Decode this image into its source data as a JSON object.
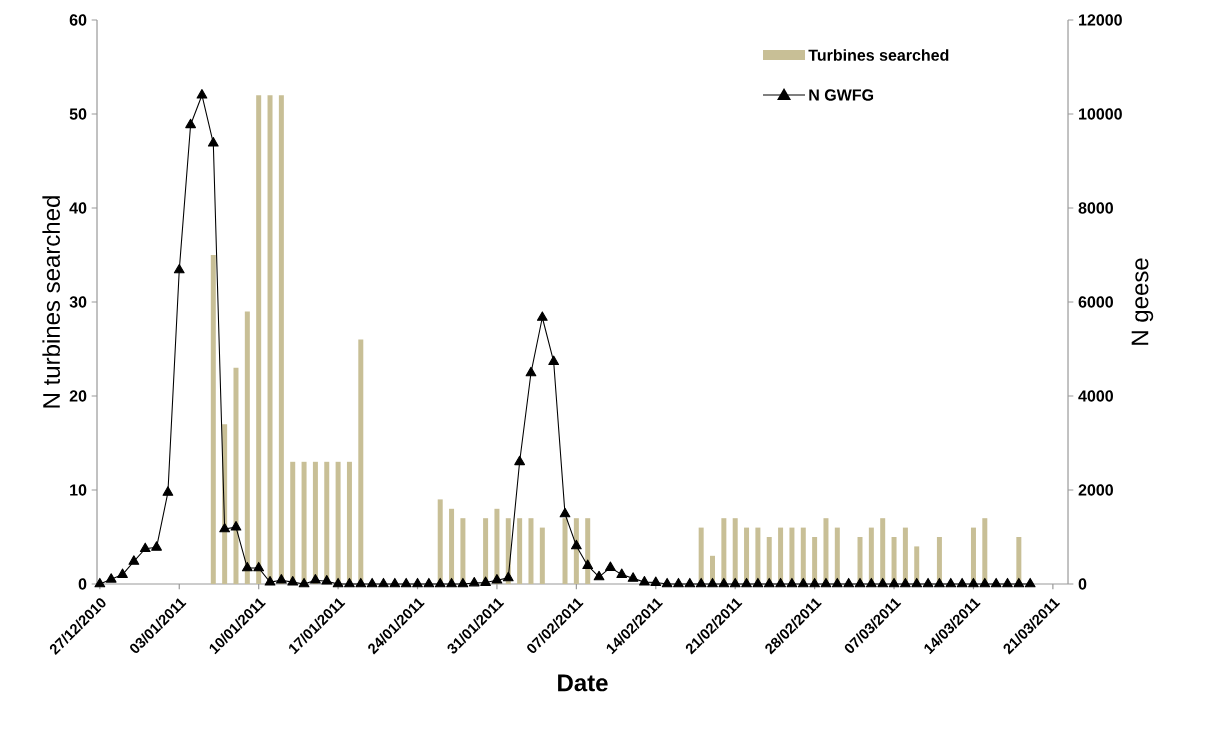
{
  "chart_data": {
    "type": "bar",
    "xlabel": "Date",
    "ylabel": "N turbines searched",
    "y2label": "N geese",
    "legend": "top right",
    "x": [
      "2010-12-27",
      "2010-12-28",
      "2010-12-29",
      "2010-12-30",
      "2010-12-31",
      "2011-01-01",
      "2011-01-02",
      "2011-01-03",
      "2011-01-04",
      "2011-01-05",
      "2011-01-06",
      "2011-01-07",
      "2011-01-08",
      "2011-01-09",
      "2011-01-10",
      "2011-01-11",
      "2011-01-12",
      "2011-01-13",
      "2011-01-14",
      "2011-01-15",
      "2011-01-16",
      "2011-01-17",
      "2011-01-18",
      "2011-01-19",
      "2011-01-20",
      "2011-01-21",
      "2011-01-22",
      "2011-01-23",
      "2011-01-24",
      "2011-01-25",
      "2011-01-26",
      "2011-01-27",
      "2011-01-28",
      "2011-01-29",
      "2011-01-30",
      "2011-01-31",
      "2011-02-01",
      "2011-02-02",
      "2011-02-03",
      "2011-02-04",
      "2011-02-05",
      "2011-02-06",
      "2011-02-07",
      "2011-02-08",
      "2011-02-09",
      "2011-02-10",
      "2011-02-11",
      "2011-02-12",
      "2011-02-13",
      "2011-02-14",
      "2011-02-15",
      "2011-02-16",
      "2011-02-17",
      "2011-02-18",
      "2011-02-19",
      "2011-02-20",
      "2011-02-21",
      "2011-02-22",
      "2011-02-23",
      "2011-02-24",
      "2011-02-25",
      "2011-02-26",
      "2011-02-27",
      "2011-02-28",
      "2011-03-01",
      "2011-03-02",
      "2011-03-03",
      "2011-03-04",
      "2011-03-05",
      "2011-03-06",
      "2011-03-07",
      "2011-03-08",
      "2011-03-09",
      "2011-03-10",
      "2011-03-11",
      "2011-03-12",
      "2011-03-13",
      "2011-03-14",
      "2011-03-15",
      "2011-03-16",
      "2011-03-17",
      "2011-03-18",
      "2011-03-19"
    ],
    "xlim": [
      "2010-12-26T18:00",
      "2011-03-22T08:00"
    ],
    "xticks": [
      {
        "value": "2010-12-27",
        "label": "27/12/2010"
      },
      {
        "value": "2011-01-03",
        "label": "03/01/2011"
      },
      {
        "value": "2011-01-10",
        "label": "10/01/2011"
      },
      {
        "value": "2011-01-17",
        "label": "17/01/2011"
      },
      {
        "value": "2011-01-24",
        "label": "24/01/2011"
      },
      {
        "value": "2011-01-31",
        "label": "31/01/2011"
      },
      {
        "value": "2011-02-07",
        "label": "07/02/2011"
      },
      {
        "value": "2011-02-14",
        "label": "14/02/2011"
      },
      {
        "value": "2011-02-21",
        "label": "21/02/2011"
      },
      {
        "value": "2011-02-28",
        "label": "28/02/2011"
      },
      {
        "value": "2011-03-07",
        "label": "07/03/2011"
      },
      {
        "value": "2011-03-14",
        "label": "14/03/2011"
      },
      {
        "value": "2011-03-21",
        "label": "21/03/2011"
      }
    ],
    "ylim": [
      0,
      60
    ],
    "yticks": [
      0,
      10,
      20,
      30,
      40,
      50,
      60
    ],
    "y2lim": [
      0,
      12000
    ],
    "y2ticks": [
      0,
      2000,
      4000,
      6000,
      8000,
      10000,
      12000
    ],
    "series": [
      {
        "name": "Turbines searched",
        "color": "#c8bf96",
        "values": [
          null,
          null,
          null,
          null,
          null,
          null,
          null,
          null,
          null,
          null,
          35,
          17,
          23,
          29,
          52,
          52,
          52,
          13,
          13,
          13,
          13,
          13,
          13,
          26,
          null,
          null,
          null,
          null,
          null,
          null,
          9,
          8,
          7,
          null,
          7,
          8,
          7,
          7,
          7,
          6,
          null,
          7,
          7,
          7,
          null,
          null,
          null,
          null,
          null,
          null,
          null,
          null,
          null,
          6,
          3,
          7,
          7,
          6,
          6,
          5,
          6,
          6,
          6,
          5,
          7,
          6,
          null,
          5,
          6,
          7,
          5,
          6,
          4,
          null,
          5,
          null,
          null,
          6,
          7,
          null,
          null,
          5,
          null
        ]
      },
      {
        "name": "N GWFG",
        "type": "line",
        "axis": "y2",
        "color": "#000000",
        "marker": "triangle",
        "line_style": "solid",
        "values": [
          0,
          100,
          200,
          480,
          750,
          780,
          1950,
          6680,
          9770,
          10400,
          9380,
          1170,
          1210,
          340,
          340,
          40,
          80,
          40,
          0,
          80,
          60,
          0,
          0,
          0,
          0,
          0,
          0,
          0,
          0,
          0,
          0,
          0,
          0,
          20,
          30,
          80,
          130,
          2600,
          4490,
          5670,
          4730,
          1490,
          810,
          390,
          150,
          350,
          200,
          120,
          40,
          30,
          0,
          0,
          0,
          0,
          0,
          0,
          0,
          0,
          0,
          0,
          0,
          0,
          0,
          0,
          0,
          0,
          0,
          0,
          0,
          0,
          0,
          0,
          0,
          0,
          0,
          0,
          0,
          0,
          0,
          0,
          0,
          0,
          0
        ]
      }
    ]
  }
}
